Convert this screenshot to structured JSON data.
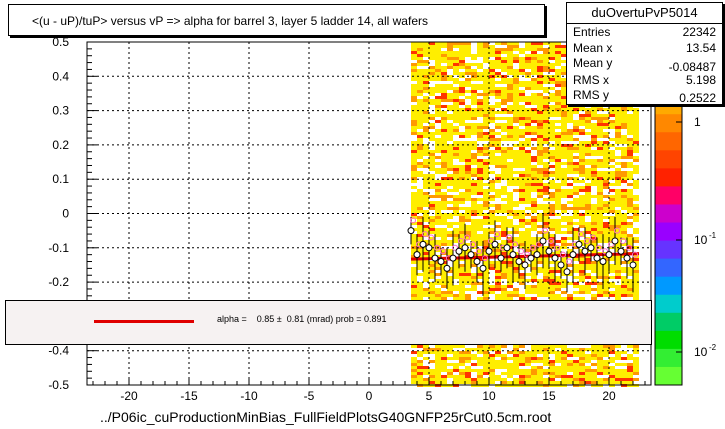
{
  "title": "<(u - uP)/tuP> versus   vP => alpha for barrel 3, layer 5 ladder 14, all wafers",
  "stats": {
    "name": "duOvertuPvP5014",
    "rows": [
      {
        "label": "Entries",
        "value": "22342"
      },
      {
        "label": "Mean x",
        "value": "13.54"
      },
      {
        "label": "Mean y",
        "value": "-0.08487"
      },
      {
        "label": "RMS x",
        "value": "5.198"
      },
      {
        "label": "RMS y",
        "value": "0.2522"
      }
    ]
  },
  "fit_text": "alpha =    0.85 ±  0.81 (mrad) prob = 0.891",
  "footer": "../P06ic_cuProductionMinBias_FullFieldPlotsG40GNFP25rCut0.5cm.root",
  "colors": {
    "fit_line": "#e00000",
    "heat_low": "#ffee00",
    "heat_mid": "#ff9900",
    "heat_high": "#ff3300",
    "profile_marker": "#000000",
    "pink_marker": "#ff66cc"
  },
  "chart_data": {
    "type": "heatmap",
    "xlim": [
      -23.5,
      23.5
    ],
    "ylim": [
      -0.5,
      0.5
    ],
    "x_ticks": [
      "-20",
      "-15",
      "-10",
      "-5",
      "0",
      "5",
      "10",
      "15",
      "20"
    ],
    "x_tick_values": [
      -20,
      -15,
      -10,
      -5,
      0,
      5,
      10,
      15,
      20
    ],
    "y_ticks": [
      "0.5",
      "0.4",
      "0.3",
      "0.2",
      "0.1",
      "0",
      "-0.1",
      "-0.2",
      "-0.3",
      "-0.4",
      "-0.5"
    ],
    "y_tick_values": [
      0.5,
      0.4,
      0.3,
      0.2,
      0.1,
      0,
      -0.1,
      -0.2,
      -0.3,
      -0.4,
      -0.5
    ],
    "heatmap_x_range": [
      3.5,
      22.5
    ],
    "z_scale": "log",
    "z_ticks": [
      "1",
      "10",
      "10"
    ],
    "z_tick_superscripts": [
      "",
      "-1",
      "-2"
    ],
    "profile": {
      "x": [
        3.5,
        4.0,
        4.5,
        5.0,
        5.5,
        6.0,
        6.5,
        7.0,
        7.5,
        8.0,
        8.5,
        9.0,
        9.5,
        10.0,
        10.5,
        11.0,
        11.5,
        12.0,
        12.5,
        13.0,
        13.5,
        14.0,
        14.5,
        15.0,
        15.5,
        16.0,
        16.5,
        17.0,
        17.5,
        18.0,
        18.5,
        19.0,
        19.5,
        20.0,
        20.5,
        21.0,
        21.5,
        22.0
      ],
      "y": [
        -0.05,
        -0.12,
        -0.09,
        -0.1,
        -0.13,
        -0.14,
        -0.16,
        -0.13,
        -0.11,
        -0.1,
        -0.12,
        -0.14,
        -0.16,
        -0.11,
        -0.09,
        -0.13,
        -0.1,
        -0.12,
        -0.14,
        -0.15,
        -0.13,
        -0.12,
        -0.08,
        -0.11,
        -0.13,
        -0.15,
        -0.17,
        -0.12,
        -0.09,
        -0.11,
        -0.1,
        -0.13,
        -0.14,
        -0.12,
        -0.08,
        -0.11,
        -0.13,
        -0.15
      ]
    },
    "fit": {
      "x": [
        3.5,
        22.5
      ],
      "y": [
        -0.133,
        -0.117
      ]
    }
  }
}
